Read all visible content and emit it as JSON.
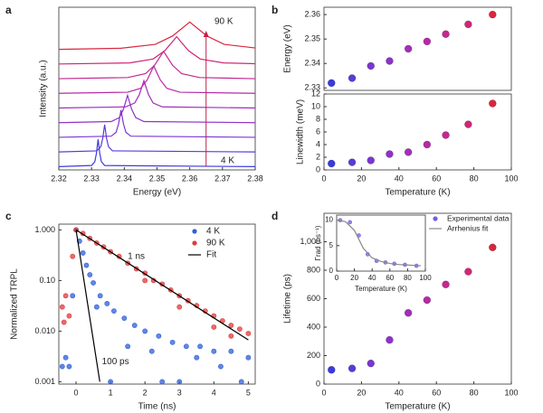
{
  "chart_data": [
    {
      "type": "spectra",
      "panel_label": "a",
      "xlabel": "Energy (eV)",
      "ylabel": "Intensity (a.u.)",
      "xlim": [
        2.32,
        2.38
      ],
      "xticks": [
        2.32,
        2.33,
        2.34,
        2.35,
        2.36,
        2.37,
        2.38
      ],
      "annotations": [
        "90 K",
        "4 K"
      ],
      "series": [
        {
          "color": "#3a3adf",
          "x": [
            2.32,
            2.33,
            2.331,
            2.3315,
            2.332,
            2.3325,
            2.333,
            2.334,
            2.38
          ],
          "values": [
            0.02,
            0.06,
            0.2,
            0.5,
            1,
            0.5,
            0.2,
            0.06,
            0.02
          ]
        },
        {
          "color": "#5a3ad8",
          "x": [
            2.32,
            2.3316,
            2.3328,
            2.3334,
            2.334,
            2.3346,
            2.3352,
            2.3364,
            2.38
          ],
          "values": [
            0.02,
            0.06,
            0.2,
            0.5,
            1,
            0.5,
            0.2,
            0.06,
            0.02
          ]
        },
        {
          "color": "#7a36d2",
          "x": [
            2.32,
            2.336,
            2.3375,
            2.33825,
            2.339,
            2.33975,
            2.3405,
            2.342,
            2.38
          ],
          "values": [
            0.02,
            0.06,
            0.2,
            0.5,
            1,
            0.5,
            0.2,
            0.06,
            0.02
          ]
        },
        {
          "color": "#8e32c8",
          "x": [
            2.32,
            2.336,
            2.3385,
            2.33975,
            2.341,
            2.34225,
            2.3435,
            2.346,
            2.38
          ],
          "values": [
            0.02,
            0.06,
            0.2,
            0.5,
            1,
            0.5,
            0.2,
            0.06,
            0.02
          ]
        },
        {
          "color": "#a22ebb",
          "x": [
            2.32,
            2.3404,
            2.3432,
            2.3446,
            2.346,
            2.3474,
            2.3488,
            2.3516,
            2.38
          ],
          "values": [
            0.02,
            0.06,
            0.2,
            0.5,
            1,
            0.5,
            0.2,
            0.06,
            0.02
          ]
        },
        {
          "color": "#b52aa8",
          "x": [
            2.32,
            2.341,
            2.345,
            2.347,
            2.349,
            2.351,
            2.353,
            2.357,
            2.38
          ],
          "values": [
            0.02,
            0.06,
            0.2,
            0.5,
            1,
            0.5,
            0.2,
            0.06,
            0.02
          ]
        },
        {
          "color": "#c42890",
          "x": [
            2.32,
            2.341,
            2.3465,
            2.34925,
            2.352,
            2.35475,
            2.3575,
            2.363,
            2.38
          ],
          "values": [
            0.02,
            0.06,
            0.2,
            0.5,
            1,
            0.5,
            0.2,
            0.06,
            0.02
          ]
        },
        {
          "color": "#d02676",
          "x": [
            2.32,
            2.3416,
            2.3488,
            2.3524,
            2.356,
            2.3596,
            2.3632,
            2.3704,
            2.38
          ],
          "values": [
            0.02,
            0.06,
            0.2,
            0.5,
            1,
            0.5,
            0.2,
            0.06,
            0.03
          ]
        },
        {
          "color": "#d9263e",
          "x": [
            2.32,
            2.339,
            2.3495,
            2.35475,
            2.36,
            2.36525,
            2.3705,
            2.38
          ],
          "values": [
            0.02,
            0.06,
            0.2,
            0.5,
            1,
            0.5,
            0.2,
            0.07
          ]
        }
      ]
    },
    {
      "type": "scatter",
      "panel_label": "b",
      "ylabel": "Energy (eV)",
      "xlim": [
        0,
        100
      ],
      "ylim": [
        2.329,
        2.363
      ],
      "yticks": [
        2.33,
        2.34,
        2.35,
        2.36
      ],
      "x": [
        4,
        15,
        25,
        35,
        45,
        55,
        65,
        77,
        90
      ],
      "values": [
        2.332,
        2.334,
        2.339,
        2.341,
        2.346,
        2.349,
        2.352,
        2.356,
        2.36
      ],
      "colors": [
        "#3a3adf",
        "#5a3ad8",
        "#7a36d2",
        "#8e32c8",
        "#a22ebb",
        "#b52aa8",
        "#c42890",
        "#d02676",
        "#d9263e"
      ]
    },
    {
      "type": "scatter",
      "xlabel": "Temperature (K)",
      "ylabel": "Linewidth (meV)",
      "xlim": [
        0,
        100
      ],
      "xticks": [
        0,
        20,
        40,
        60,
        80,
        100
      ],
      "ylim": [
        0,
        12
      ],
      "yticks": [
        0,
        2,
        4,
        6,
        8,
        10,
        12
      ],
      "x": [
        4,
        15,
        25,
        35,
        45,
        55,
        65,
        77,
        90
      ],
      "values": [
        1.0,
        1.2,
        1.5,
        2.5,
        2.8,
        4.0,
        5.5,
        7.2,
        10.5
      ],
      "colors": [
        "#3a3adf",
        "#5a3ad8",
        "#7a36d2",
        "#8e32c8",
        "#a22ebb",
        "#b52aa8",
        "#c42890",
        "#d02676",
        "#d9263e"
      ]
    },
    {
      "type": "scatter",
      "panel_label": "c",
      "xlabel": "Time (ns)",
      "ylabel": "Normalized TRPL",
      "ylog": true,
      "legend": "upper right",
      "xlim": [
        -0.5,
        5.2
      ],
      "xticks": [
        0,
        1,
        2,
        3,
        4,
        5
      ],
      "ylim": [
        0.0009,
        1.3
      ],
      "yticks": [
        0.001,
        {
          "value": 0.01,
          "label": "0.010"
        },
        {
          "value": 0.1,
          "label": "0.10"
        },
        {
          "value": 1,
          "label": "1.000"
        }
      ],
      "annotations": [
        "1 ns",
        "100 ps"
      ],
      "series": [
        {
          "name": "4 K",
          "color": "#2f5fd8",
          "x": [
            -0.4,
            -0.3,
            -0.2,
            -0.1,
            0,
            0.1,
            0.2,
            0.3,
            0.4,
            0.5,
            0.7,
            0.9,
            1.1,
            1.4,
            1.7,
            2.0,
            2.4,
            2.8,
            3.2,
            3.6,
            4.0,
            4.5,
            5.0,
            1.0,
            2.5,
            3.5,
            4.2,
            1.5,
            0.6,
            3.0,
            4.8,
            2.2
          ],
          "values": [
            0.002,
            0.003,
            0.002,
            0.05,
            1.0,
            0.6,
            0.35,
            0.2,
            0.13,
            0.09,
            0.05,
            0.035,
            0.025,
            0.018,
            0.013,
            0.01,
            0.008,
            0.006,
            0.005,
            0.005,
            0.004,
            0.004,
            0.003,
            0.001,
            0.001,
            0.003,
            0.002,
            0.005,
            0.03,
            0.001,
            0.001,
            0.004
          ]
        },
        {
          "name": "90 K",
          "color": "#e03a3a",
          "x": [
            -0.4,
            -0.3,
            -0.2,
            -0.1,
            0,
            0.2,
            0.4,
            0.6,
            0.8,
            1.0,
            1.25,
            1.5,
            1.75,
            2.0,
            2.25,
            2.5,
            2.75,
            3.0,
            3.25,
            3.5,
            3.75,
            4.0,
            4.25,
            4.5,
            4.75,
            5.0,
            3.0,
            4.0,
            4.5,
            2.0,
            -0.35
          ],
          "values": [
            0.03,
            0.05,
            0.02,
            0.3,
            1.0,
            0.85,
            0.68,
            0.55,
            0.46,
            0.37,
            0.3,
            0.22,
            0.17,
            0.14,
            0.1,
            0.085,
            0.065,
            0.05,
            0.04,
            0.032,
            0.025,
            0.02,
            0.016,
            0.013,
            0.011,
            0.009,
            0.03,
            0.012,
            0.008,
            0.1,
            0.015
          ]
        },
        {
          "name": "Fit",
          "type": "line",
          "color": "#000000",
          "x": [
            0,
            5,
            null,
            0,
            0.69
          ],
          "values": [
            1,
            0.0067,
            null,
            1,
            0.001
          ]
        }
      ]
    },
    {
      "type": "scatter",
      "panel_label": "d",
      "xlabel": "Temperature (K)",
      "ylabel": "Lifetime (ps)",
      "xlim": [
        0,
        100
      ],
      "xticks": [
        0,
        20,
        40,
        60,
        80,
        100
      ],
      "ylim": [
        0,
        1200
      ],
      "yticks": [
        0,
        200,
        400,
        600,
        800,
        {
          "value": 1000,
          "label": "1,000"
        }
      ],
      "x": [
        4,
        15,
        25,
        35,
        45,
        55,
        65,
        77,
        90
      ],
      "values": [
        100,
        110,
        145,
        310,
        500,
        590,
        700,
        790,
        960
      ],
      "colors": [
        "#3a3adf",
        "#5a3ad8",
        "#7a36d2",
        "#8e32c8",
        "#a22ebb",
        "#b52aa8",
        "#c42890",
        "#d02676",
        "#d9263e"
      ]
    },
    {
      "type": "scatter",
      "xlabel": "Temperature (K)",
      "ylabel": "Γrad (ns⁻¹)",
      "legend": "right",
      "xlim": [
        0,
        100
      ],
      "xticks": [
        0,
        20,
        40,
        60,
        80,
        100
      ],
      "ylim": [
        0,
        11
      ],
      "yticks": [
        0,
        5,
        10
      ],
      "series": [
        {
          "name": "Experimental data",
          "color": "#7a5ae0",
          "x": [
            4,
            15,
            25,
            35,
            45,
            55,
            65,
            77,
            90
          ],
          "values": [
            10,
            9.6,
            7,
            3.3,
            2,
            1.7,
            1.45,
            1.25,
            1.05
          ]
        },
        {
          "name": "Arrhenius fit",
          "type": "line",
          "color": "#888888",
          "x": [
            0,
            10,
            20,
            30,
            40,
            50,
            60,
            70,
            80,
            90,
            95
          ],
          "values": [
            10,
            9.7,
            8,
            4.5,
            2.6,
            1.9,
            1.5,
            1.3,
            1.2,
            1.1,
            1.05
          ]
        }
      ]
    }
  ]
}
